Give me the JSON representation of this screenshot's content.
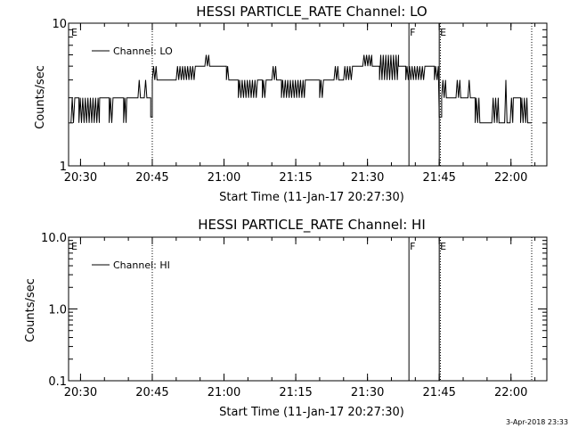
{
  "chart_data": [
    {
      "type": "line",
      "title": "HESSI PARTICLE_RATE Channel: LO",
      "xlabel": "Start Time (11-Jan-17 20:27:30)",
      "ylabel": "Counts/sec",
      "yscale": "log",
      "ylim": [
        1,
        10
      ],
      "ytick_labels": [
        "1",
        "10"
      ],
      "xlim": [
        "20:27:30",
        "22:07:30"
      ],
      "xtick_labels": [
        "20:30",
        "20:45",
        "21:00",
        "21:15",
        "21:30",
        "21:45",
        "22:00"
      ],
      "legend": {
        "entries": [
          "Channel: LO"
        ],
        "position": "top-left"
      },
      "vlines": [
        {
          "time": "20:45:00",
          "style": "dotted"
        },
        {
          "time": "21:38:40",
          "style": "solid",
          "label": "F"
        },
        {
          "time": "21:45:00",
          "style": "solid",
          "label": "E"
        },
        {
          "time": "21:45:15",
          "style": "dotted"
        },
        {
          "time": "22:04:20",
          "style": "dotted"
        }
      ],
      "edge_label": "E",
      "series": [
        {
          "name": "Channel: LO",
          "segments": [
            [
              "20:28:00",
              "20:29:00",
              "alt",
              2,
              3
            ],
            [
              "20:29:00",
              "20:29:40",
              "flat",
              3
            ],
            [
              "20:29:40",
              "20:34:00",
              "alt",
              2,
              3
            ],
            [
              "20:34:00",
              "20:36:00",
              "flat",
              3
            ],
            [
              "20:36:00",
              "20:37:00",
              "alt",
              2,
              3
            ],
            [
              "20:37:00",
              "20:39:00",
              "flat",
              3
            ],
            [
              "20:39:00",
              "20:39:40",
              "alt",
              2,
              3
            ],
            [
              "20:39:40",
              "20:42:00",
              "flat",
              3
            ],
            [
              "20:42:00",
              "20:42:40",
              "alt",
              3,
              4
            ],
            [
              "20:42:40",
              "20:43:20",
              "flat",
              3
            ],
            [
              "20:43:20",
              "20:44:00",
              "alt",
              3,
              4
            ],
            [
              "20:44:00",
              "20:44:40",
              "flat",
              3
            ],
            [
              "20:44:40",
              "20:45:00",
              "flat",
              2.2
            ],
            [
              "20:45:00",
              "20:46:00",
              "alt",
              4,
              5
            ],
            [
              "20:46:00",
              "20:50:00",
              "flat",
              4
            ],
            [
              "20:50:00",
              "20:54:00",
              "alt",
              4,
              5
            ],
            [
              "20:54:00",
              "20:56:00",
              "flat",
              5
            ],
            [
              "20:56:00",
              "20:57:00",
              "alt",
              5,
              6
            ],
            [
              "20:57:00",
              "21:00:30",
              "flat",
              5
            ],
            [
              "21:00:30",
              "21:01:00",
              "alt",
              4,
              5
            ],
            [
              "21:01:00",
              "21:03:00",
              "flat",
              4
            ],
            [
              "21:03:00",
              "21:07:00",
              "alt",
              3,
              4
            ],
            [
              "21:07:00",
              "21:08:00",
              "flat",
              4
            ],
            [
              "21:08:00",
              "21:09:00",
              "alt",
              3,
              4
            ],
            [
              "21:09:00",
              "21:10:00",
              "flat",
              4
            ],
            [
              "21:10:00",
              "21:11:00",
              "alt",
              4,
              5
            ],
            [
              "21:11:00",
              "21:12:00",
              "flat",
              4
            ],
            [
              "21:12:00",
              "21:17:00",
              "alt",
              3,
              4
            ],
            [
              "21:17:00",
              "21:20:00",
              "flat",
              4
            ],
            [
              "21:20:00",
              "21:21:00",
              "alt",
              3,
              4
            ],
            [
              "21:21:00",
              "21:23:00",
              "flat",
              4
            ],
            [
              "21:23:00",
              "21:24:00",
              "alt",
              4,
              5
            ],
            [
              "21:24:00",
              "21:25:00",
              "flat",
              4
            ],
            [
              "21:25:00",
              "21:27:00",
              "alt",
              4,
              5
            ],
            [
              "21:27:00",
              "21:29:00",
              "flat",
              5
            ],
            [
              "21:29:00",
              "21:31:00",
              "alt",
              5,
              6
            ],
            [
              "21:31:00",
              "21:32:30",
              "flat",
              5
            ],
            [
              "21:32:30",
              "21:36:30",
              "alt",
              4,
              6
            ],
            [
              "21:36:30",
              "21:38:00",
              "flat",
              5
            ],
            [
              "21:38:00",
              "21:42:00",
              "alt",
              4,
              5
            ],
            [
              "21:42:00",
              "21:44:00",
              "flat",
              5
            ],
            [
              "21:44:00",
              "21:45:00",
              "alt",
              4,
              5
            ],
            [
              "21:45:00",
              "21:45:30",
              "flat",
              2.2
            ],
            [
              "21:45:30",
              "21:46:30",
              "alt",
              3,
              4
            ],
            [
              "21:46:30",
              "21:48:30",
              "flat",
              3
            ],
            [
              "21:48:30",
              "21:49:30",
              "alt",
              3,
              4
            ],
            [
              "21:49:30",
              "21:51:00",
              "flat",
              3
            ],
            [
              "21:51:00",
              "21:51:30",
              "alt",
              3,
              4
            ],
            [
              "21:51:30",
              "21:52:30",
              "flat",
              3
            ],
            [
              "21:52:30",
              "21:53:30",
              "alt",
              2,
              3
            ],
            [
              "21:53:30",
              "21:56:00",
              "flat",
              2
            ],
            [
              "21:56:00",
              "21:57:30",
              "alt",
              2,
              3
            ],
            [
              "21:57:30",
              "21:58:40",
              "flat",
              2
            ],
            [
              "21:58:40",
              "21:59:10",
              "alt",
              2,
              4
            ],
            [
              "21:59:10",
              "21:59:50",
              "flat",
              2
            ],
            [
              "21:59:50",
              "22:00:30",
              "alt",
              2,
              3
            ],
            [
              "22:00:30",
              "22:02:00",
              "flat",
              3
            ],
            [
              "22:02:00",
              "22:03:30",
              "alt",
              2,
              3
            ],
            [
              "22:03:30",
              "22:04:20",
              "flat",
              2
            ]
          ]
        }
      ]
    },
    {
      "type": "line",
      "title": "HESSI PARTICLE_RATE Channel: HI",
      "xlabel": "Start Time (11-Jan-17 20:27:30)",
      "ylabel": "Counts/sec",
      "yscale": "log",
      "ylim": [
        0.1,
        10
      ],
      "ytick_labels": [
        "0.1",
        "1.0",
        "10.0"
      ],
      "xlim": [
        "20:27:30",
        "22:07:30"
      ],
      "xtick_labels": [
        "20:30",
        "20:45",
        "21:00",
        "21:15",
        "21:30",
        "21:45",
        "22:00"
      ],
      "legend": {
        "entries": [
          "Channel: HI"
        ],
        "position": "top-left"
      },
      "vlines": [
        {
          "time": "20:45:00",
          "style": "dotted"
        },
        {
          "time": "21:38:40",
          "style": "solid",
          "label": "F"
        },
        {
          "time": "21:45:00",
          "style": "solid",
          "label": "E"
        },
        {
          "time": "21:45:15",
          "style": "dotted"
        },
        {
          "time": "22:04:20",
          "style": "dotted"
        }
      ],
      "edge_label": "E",
      "series": [
        {
          "name": "Channel: HI",
          "segments": []
        }
      ]
    }
  ],
  "timestamp": "3-Apr-2018 23:33"
}
